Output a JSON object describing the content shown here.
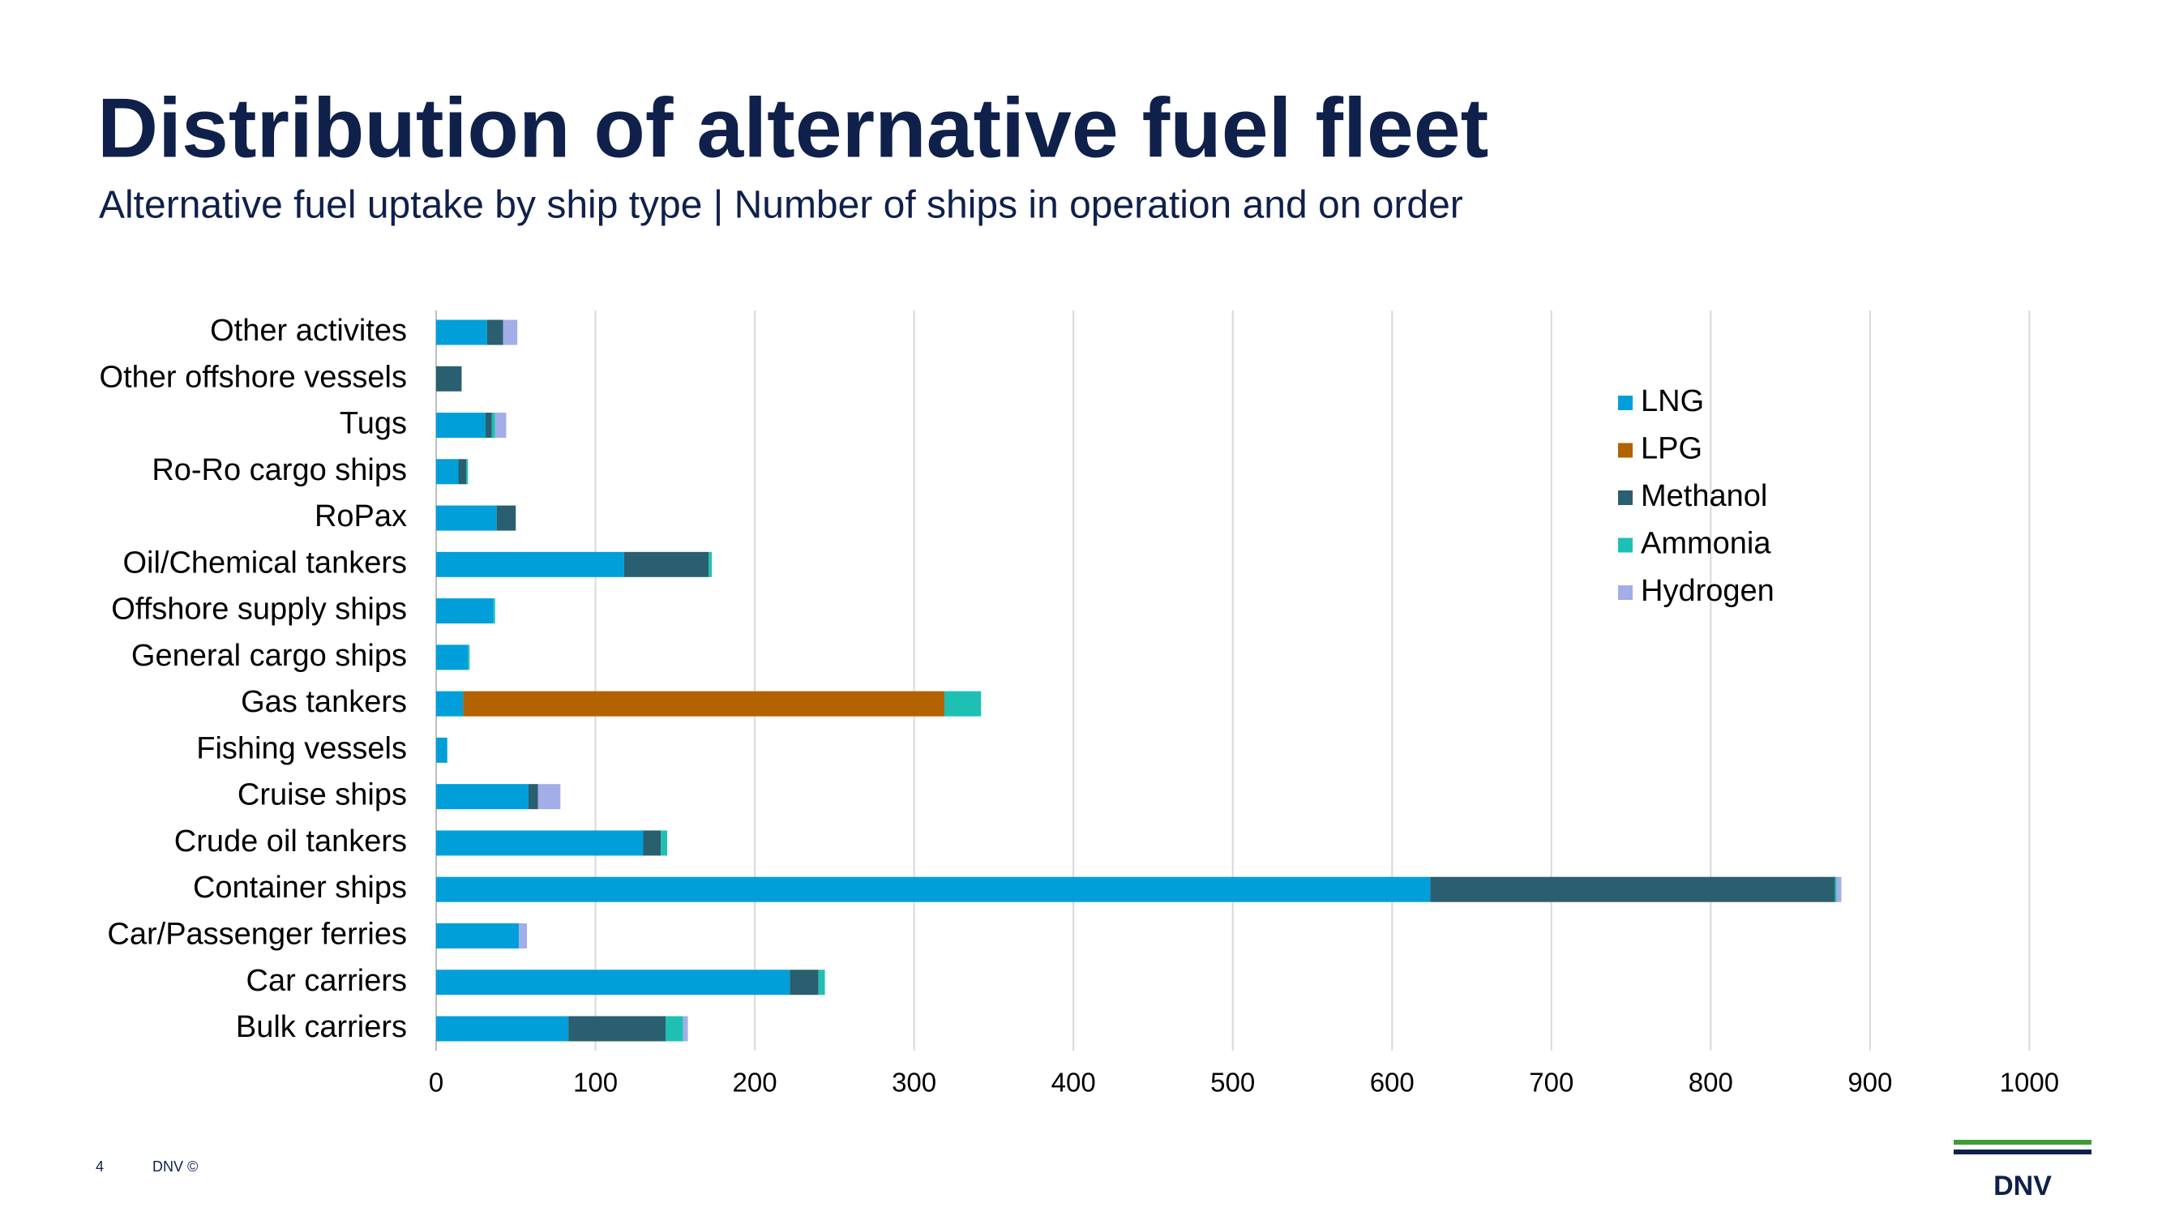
{
  "chart_data": {
    "type": "bar",
    "orientation": "horizontal",
    "stacked": true,
    "title": "Distribution of alternative fuel fleet",
    "subtitle": "Alternative fuel uptake by ship type | Number of ships in operation and on order",
    "categories": [
      "Other activites",
      "Other offshore vessels",
      "Tugs",
      "Ro-Ro cargo ships",
      "RoPax",
      "Oil/Chemical tankers",
      "Offshore supply ships",
      "General cargo ships",
      "Gas tankers",
      "Fishing vessels",
      "Cruise ships",
      "Crude oil tankers",
      "Container ships",
      "Car/Passenger ferries",
      "Car carriers",
      "Bulk carriers"
    ],
    "series": [
      {
        "name": "LNG",
        "color": "#009fda",
        "values": [
          32,
          0,
          31,
          14,
          38,
          118,
          36,
          20,
          17,
          7,
          58,
          130,
          624,
          52,
          222,
          83
        ]
      },
      {
        "name": "LPG",
        "color": "#b36200",
        "values": [
          0,
          0,
          0,
          0,
          0,
          0,
          0,
          0,
          302,
          0,
          0,
          0,
          0,
          0,
          0,
          0
        ]
      },
      {
        "name": "Methanol",
        "color": "#2a5f6f",
        "values": [
          10,
          16,
          4,
          5,
          12,
          53,
          0,
          0,
          0,
          0,
          6,
          11,
          254,
          0,
          18,
          61
        ]
      },
      {
        "name": "Ammonia",
        "color": "#1ec0b4",
        "values": [
          0,
          0,
          2,
          1,
          0,
          2,
          1,
          1,
          23,
          0,
          0,
          4,
          1,
          0,
          4,
          11
        ]
      },
      {
        "name": "Hydrogen",
        "color": "#a3ade8",
        "values": [
          9,
          0,
          7,
          0,
          0,
          0,
          0,
          0,
          0,
          0,
          14,
          0,
          3,
          5,
          0,
          3
        ]
      }
    ],
    "xlim": [
      0,
      1040
    ],
    "xticks": [
      0,
      100,
      200,
      300,
      400,
      500,
      600,
      700,
      800,
      900,
      1000
    ],
    "grid": true,
    "legend": "right"
  },
  "footer": {
    "page": "4",
    "text": "DNV ©"
  },
  "logo": "DNV"
}
